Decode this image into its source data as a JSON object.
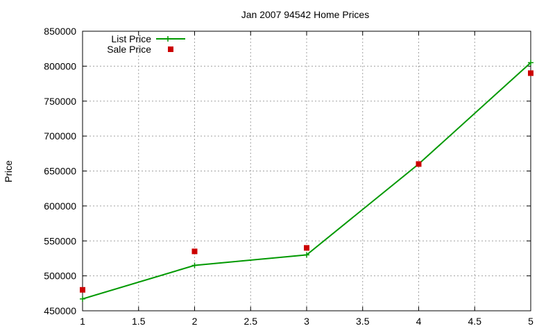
{
  "chart_data": {
    "type": "line",
    "title": "Jan 2007 94542 Home Prices",
    "xlabel": "",
    "ylabel": "Price",
    "xlim": [
      1,
      5
    ],
    "ylim": [
      450000,
      850000
    ],
    "xticks": [
      "1",
      "1.5",
      "2",
      "2.5",
      "3",
      "3.5",
      "4",
      "4.5",
      "5"
    ],
    "yticks": [
      "450000",
      "500000",
      "550000",
      "600000",
      "650000",
      "700000",
      "750000",
      "800000",
      "850000"
    ],
    "grid": true,
    "legend_position": "top-left",
    "series": [
      {
        "name": "List Price",
        "style": "line+points",
        "color": "#009900",
        "x": [
          1,
          2,
          3,
          4,
          5
        ],
        "y": [
          467000,
          515000,
          530000,
          660000,
          805000
        ]
      },
      {
        "name": "Sale Price",
        "style": "points",
        "color": "#cc0000",
        "x": [
          1,
          2,
          3,
          4,
          5
        ],
        "y": [
          480000,
          535000,
          540000,
          660000,
          790000
        ]
      }
    ]
  }
}
